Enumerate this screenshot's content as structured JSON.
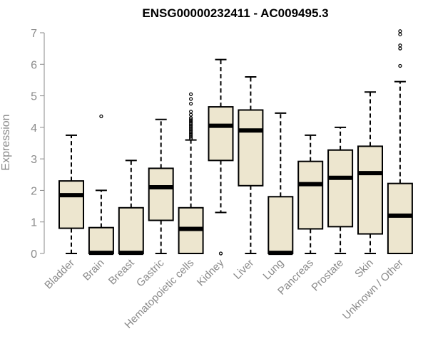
{
  "chart_data": {
    "type": "boxplot",
    "title": "ENSG00000232411 - AC009495.3",
    "xlabel": "",
    "ylabel": "Expression",
    "ylim": [
      0,
      7
    ],
    "yticks": [
      0,
      1,
      2,
      3,
      4,
      5,
      6,
      7
    ],
    "grid": false,
    "box_color": "#ede6cf",
    "categories": [
      "Bladder",
      "Brain",
      "Breast",
      "Gastric",
      "Hematopoietic cells",
      "Kidney",
      "Liver",
      "Lung",
      "Pancreas",
      "Prostate",
      "Skin",
      "Unknown / Other"
    ],
    "boxes": [
      {
        "whisker_low": 0,
        "q1": 0.8,
        "median": 1.85,
        "q3": 2.3,
        "whisker_high": 3.75,
        "outliers": []
      },
      {
        "whisker_low": 0,
        "q1": 0,
        "median": 0.02,
        "q3": 0.82,
        "whisker_high": 2.0,
        "outliers": [
          4.35
        ]
      },
      {
        "whisker_low": 0,
        "q1": 0,
        "median": 0.02,
        "q3": 1.45,
        "whisker_high": 2.95,
        "outliers": []
      },
      {
        "whisker_low": 0,
        "q1": 1.05,
        "median": 2.1,
        "q3": 2.7,
        "whisker_high": 4.25,
        "outliers": []
      },
      {
        "whisker_low": 0,
        "q1": 0,
        "median": 0.78,
        "q3": 1.45,
        "whisker_high": 3.6,
        "outliers": [
          3.65,
          3.7,
          3.75,
          3.8,
          3.85,
          3.9,
          3.95,
          4.0,
          4.05,
          4.1,
          4.15,
          4.2,
          4.25,
          4.3,
          4.4,
          4.5,
          4.75,
          4.9,
          5.05
        ]
      },
      {
        "whisker_low": 1.3,
        "q1": 2.95,
        "median": 4.05,
        "q3": 4.65,
        "whisker_high": 6.15,
        "outliers": [
          0
        ]
      },
      {
        "whisker_low": 0,
        "q1": 2.15,
        "median": 3.9,
        "q3": 4.55,
        "whisker_high": 5.6,
        "outliers": []
      },
      {
        "whisker_low": 0,
        "q1": 0,
        "median": 0.02,
        "q3": 1.8,
        "whisker_high": 4.45,
        "outliers": []
      },
      {
        "whisker_low": 0,
        "q1": 0.78,
        "median": 2.2,
        "q3": 2.92,
        "whisker_high": 3.75,
        "outliers": []
      },
      {
        "whisker_low": 0,
        "q1": 0.85,
        "median": 2.4,
        "q3": 3.28,
        "whisker_high": 4.0,
        "outliers": []
      },
      {
        "whisker_low": 0,
        "q1": 0.62,
        "median": 2.55,
        "q3": 3.4,
        "whisker_high": 5.12,
        "outliers": []
      },
      {
        "whisker_low": 0,
        "q1": 0,
        "median": 1.2,
        "q3": 2.22,
        "whisker_high": 5.45,
        "outliers": [
          5.95,
          6.5,
          6.6,
          6.95,
          7.05
        ]
      }
    ]
  }
}
